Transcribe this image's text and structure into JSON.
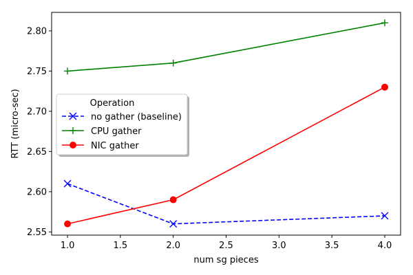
{
  "chart_data": {
    "type": "line",
    "xlabel": "num sg pieces",
    "ylabel": "RTT (micro-sec)",
    "xlim": [
      0.85,
      4.15
    ],
    "ylim": [
      2.546,
      2.823
    ],
    "xticks": [
      "1.0",
      "1.5",
      "2.0",
      "2.5",
      "3.0",
      "3.5",
      "4.0"
    ],
    "yticks": [
      "2.55",
      "2.60",
      "2.65",
      "2.70",
      "2.75",
      "2.80"
    ],
    "grid": false,
    "legend": {
      "title": "Operation",
      "placement": "center-left"
    },
    "series": [
      {
        "name": "no gather (baseline)",
        "color": "#0000ff",
        "linestyle": "dashed",
        "marker": "x",
        "x": [
          1,
          2,
          4
        ],
        "y": [
          2.61,
          2.56,
          2.57
        ]
      },
      {
        "name": "CPU gather",
        "color": "#008000",
        "linestyle": "solid",
        "marker": "+",
        "x": [
          1,
          2,
          4
        ],
        "y": [
          2.75,
          2.76,
          2.81
        ]
      },
      {
        "name": "NIC gather",
        "color": "#ff0000",
        "linestyle": "solid",
        "marker": "o",
        "x": [
          1,
          2,
          4
        ],
        "y": [
          2.56,
          2.59,
          2.73
        ]
      }
    ]
  }
}
